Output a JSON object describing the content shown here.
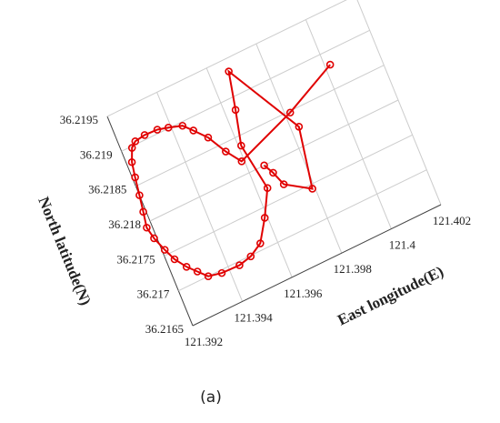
{
  "chart_data": {
    "type": "line",
    "xlabel": "East longitude(E)",
    "ylabel": "North latitude(N)",
    "caption": "(a)",
    "color": "#e00000",
    "grid": true,
    "xlim": [
      121.392,
      121.402
    ],
    "xticks": [
      121.392,
      121.394,
      121.396,
      121.398,
      121.4,
      121.402
    ],
    "ylim": [
      36.2165,
      36.2195
    ],
    "yticks": [
      36.2165,
      36.217,
      36.2175,
      36.218,
      36.2185,
      36.219,
      36.2195
    ],
    "x": [
      121.3966,
      121.3968,
      121.397,
      121.3979,
      121.3983,
      121.3967,
      121.3964,
      121.3961,
      121.3964,
      121.3959,
      121.3954,
      121.3949,
      121.3944,
      121.3937,
      121.3932,
      121.3929,
      121.3926,
      121.3923,
      121.3921,
      121.3919,
      121.3918,
      121.3919,
      121.392,
      121.3921,
      121.3922,
      121.3924,
      121.3926,
      121.393,
      121.3935,
      121.3939,
      121.3944,
      121.3947,
      121.3951,
      121.3955,
      121.3959,
      121.3982,
      121.4002
    ],
    "values": [
      36.218,
      36.21786,
      36.21766,
      36.21744,
      36.21826,
      36.21933,
      36.21883,
      36.21837,
      36.21771,
      36.21737,
      36.21709,
      36.21699,
      36.21695,
      36.21696,
      36.217,
      36.21712,
      36.21724,
      36.2174,
      36.21757,
      36.21777,
      36.21794,
      36.21815,
      36.21837,
      36.21861,
      36.21881,
      36.21898,
      36.21904,
      36.21906,
      36.21905,
      36.21901,
      36.21895,
      36.21883,
      36.21866,
      36.21839,
      36.21818,
      36.21848,
      36.21882
    ]
  }
}
